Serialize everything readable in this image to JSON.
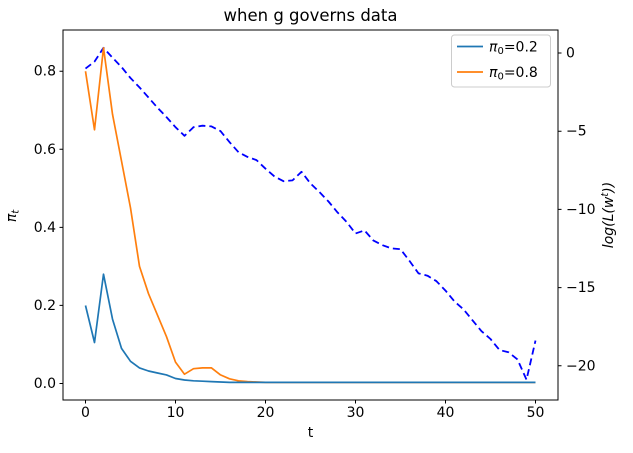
{
  "title": "when g governs data",
  "axes": {
    "xlabel": "t",
    "ylabel_left": {
      "base": "π",
      "sub": "t"
    },
    "ylabel_right": {
      "pre": "log(L(w",
      "sup": "t",
      "post": "))"
    },
    "x_ticks": [
      "0",
      "10",
      "20",
      "30",
      "40",
      "50"
    ],
    "y_ticks_left": [
      "0.0",
      "0.2",
      "0.4",
      "0.6",
      "0.8"
    ],
    "y_ticks_right": [
      "0",
      "−5",
      "−10",
      "−15",
      "−20"
    ]
  },
  "legend": {
    "entries": [
      {
        "base": "π",
        "sub": "0",
        "rest": "=0.2",
        "color": "#1f77b4"
      },
      {
        "base": "π",
        "sub": "0",
        "rest": "=0.8",
        "color": "#ff7f0e"
      }
    ]
  },
  "chart_data": {
    "type": "line",
    "title": "when g governs data",
    "xlabel": "t",
    "ylabel_left": "pi_t",
    "ylabel_right": "log(L(w^t))",
    "legend_position": "upper right",
    "grid": false,
    "xlim": [
      -2.5,
      52.5
    ],
    "ylim_left": [
      -0.0422,
      0.9056
    ],
    "ylim_right": [
      -22.2,
      1.47
    ],
    "x": [
      0,
      1,
      2,
      3,
      4,
      5,
      6,
      7,
      8,
      9,
      10,
      11,
      12,
      13,
      14,
      15,
      16,
      17,
      18,
      19,
      20,
      21,
      22,
      23,
      24,
      25,
      26,
      27,
      28,
      29,
      30,
      31,
      32,
      33,
      34,
      35,
      36,
      37,
      38,
      39,
      40,
      41,
      42,
      43,
      44,
      45,
      46,
      47,
      48,
      49,
      50
    ],
    "series": [
      {
        "name": "pi0=0.2",
        "axis": "left",
        "color": "#1f77b4",
        "dash": "",
        "values": [
          0.2,
          0.105,
          0.28,
          0.165,
          0.09,
          0.057,
          0.04,
          0.032,
          0.027,
          0.022,
          0.013,
          0.009,
          0.007,
          0.006,
          0.005,
          0.004,
          0.003,
          0.003,
          0.003,
          0.003,
          0.003,
          0.003,
          0.003,
          0.003,
          0.003,
          0.003,
          0.003,
          0.003,
          0.003,
          0.003,
          0.003,
          0.003,
          0.003,
          0.003,
          0.003,
          0.003,
          0.003,
          0.003,
          0.003,
          0.003,
          0.003,
          0.003,
          0.003,
          0.003,
          0.003,
          0.003,
          0.003,
          0.003,
          0.003,
          0.003,
          0.003
        ]
      },
      {
        "name": "pi0=0.8",
        "axis": "left",
        "color": "#ff7f0e",
        "dash": "",
        "values": [
          0.8,
          0.65,
          0.86,
          0.69,
          0.57,
          0.45,
          0.3,
          0.23,
          0.175,
          0.12,
          0.055,
          0.024,
          0.038,
          0.04,
          0.04,
          0.022,
          0.012,
          0.007,
          0.005,
          0.004,
          0.003,
          0.003,
          0.003,
          0.003,
          0.003,
          0.003,
          0.003,
          0.003,
          0.003,
          0.003,
          0.003,
          0.003,
          0.003,
          0.003,
          0.003,
          0.003,
          0.003,
          0.003,
          0.003,
          0.003,
          0.003,
          0.003,
          0.003,
          0.003,
          0.003,
          0.003,
          0.003,
          0.003,
          0.003,
          0.003,
          0.003
        ]
      },
      {
        "name": "log-likelihood",
        "axis": "right",
        "color": "#0000ff",
        "dash": "7 4",
        "values": [
          -1.0,
          -0.55,
          0.33,
          -0.3,
          -0.9,
          -1.6,
          -2.2,
          -2.85,
          -3.5,
          -4.1,
          -4.75,
          -5.3,
          -4.75,
          -4.65,
          -4.7,
          -5.0,
          -5.7,
          -6.35,
          -6.65,
          -6.85,
          -7.4,
          -7.9,
          -8.2,
          -8.15,
          -7.6,
          -8.35,
          -8.9,
          -9.5,
          -10.2,
          -10.8,
          -11.55,
          -11.35,
          -12.0,
          -12.3,
          -12.5,
          -12.55,
          -13.3,
          -14.1,
          -14.25,
          -14.6,
          -15.2,
          -15.9,
          -16.4,
          -17.1,
          -17.8,
          -18.3,
          -19.0,
          -19.15,
          -19.6,
          -20.9,
          -18.4
        ]
      }
    ]
  }
}
